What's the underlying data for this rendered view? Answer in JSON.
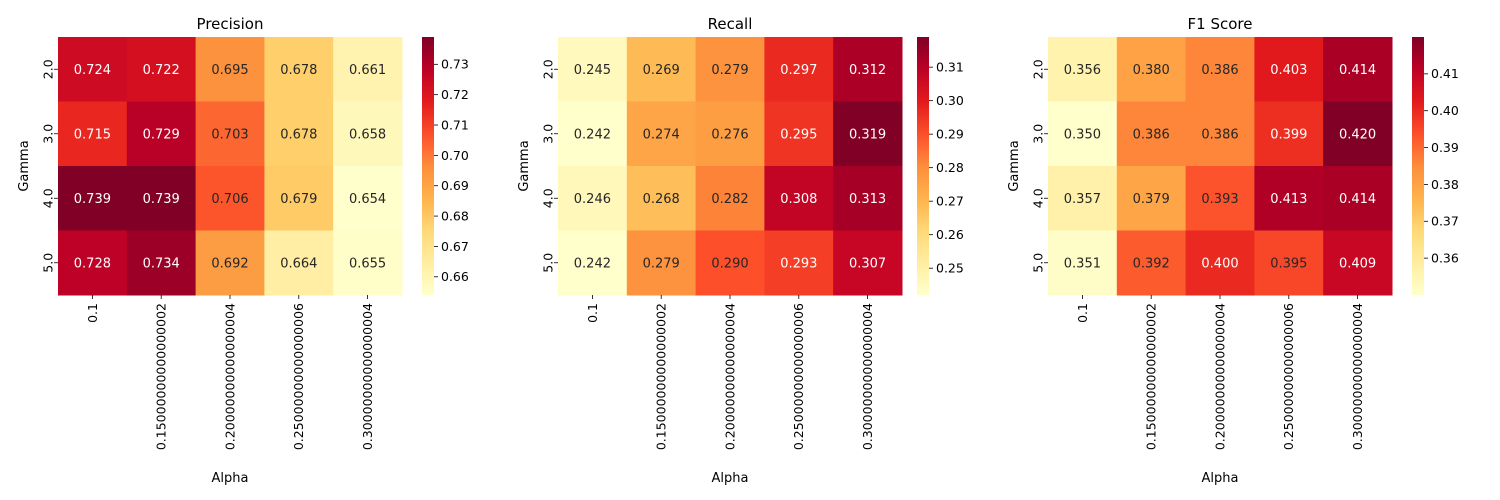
{
  "chart_data": [
    {
      "type": "heatmap",
      "title": "Precision",
      "xlabel": "Alpha",
      "ylabel": "Gamma",
      "x_tick_labels": [
        "0.1",
        "0.15000000000000002",
        "0.20000000000000004",
        "0.25000000000000006",
        "0.30000000000000004"
      ],
      "y_tick_labels": [
        "2.0",
        "3.0",
        "4.0",
        "5.0"
      ],
      "values": [
        [
          0.724,
          0.722,
          0.695,
          0.678,
          0.661
        ],
        [
          0.715,
          0.729,
          0.703,
          0.678,
          0.658
        ],
        [
          0.739,
          0.739,
          0.706,
          0.679,
          0.654
        ],
        [
          0.728,
          0.734,
          0.692,
          0.664,
          0.655
        ]
      ],
      "value_labels": [
        [
          "0.724",
          "0.722",
          "0.695",
          "0.678",
          "0.661"
        ],
        [
          "0.715",
          "0.729",
          "0.703",
          "0.678",
          "0.658"
        ],
        [
          "0.739",
          "0.739",
          "0.706",
          "0.679",
          "0.654"
        ],
        [
          "0.728",
          "0.734",
          "0.692",
          "0.664",
          "0.655"
        ]
      ],
      "colorbar_ticks": [
        "0.66",
        "0.67",
        "0.68",
        "0.69",
        "0.70",
        "0.71",
        "0.72",
        "0.73"
      ],
      "colorbar_tick_values": [
        0.66,
        0.67,
        0.68,
        0.69,
        0.7,
        0.71,
        0.72,
        0.73
      ],
      "vmin": 0.654,
      "vmax": 0.739,
      "colormap": "YlOrRd"
    },
    {
      "type": "heatmap",
      "title": "Recall",
      "xlabel": "Alpha",
      "ylabel": "Gamma",
      "x_tick_labels": [
        "0.1",
        "0.15000000000000002",
        "0.20000000000000004",
        "0.25000000000000006",
        "0.30000000000000004"
      ],
      "y_tick_labels": [
        "2.0",
        "3.0",
        "4.0",
        "5.0"
      ],
      "values": [
        [
          0.245,
          0.269,
          0.279,
          0.297,
          0.312
        ],
        [
          0.242,
          0.274,
          0.276,
          0.295,
          0.319
        ],
        [
          0.246,
          0.268,
          0.282,
          0.308,
          0.313
        ],
        [
          0.242,
          0.279,
          0.29,
          0.293,
          0.307
        ]
      ],
      "value_labels": [
        [
          "0.245",
          "0.269",
          "0.279",
          "0.297",
          "0.312"
        ],
        [
          "0.242",
          "0.274",
          "0.276",
          "0.295",
          "0.319"
        ],
        [
          "0.246",
          "0.268",
          "0.282",
          "0.308",
          "0.313"
        ],
        [
          "0.242",
          "0.279",
          "0.290",
          "0.293",
          "0.307"
        ]
      ],
      "colorbar_ticks": [
        "0.25",
        "0.26",
        "0.27",
        "0.28",
        "0.29",
        "0.30",
        "0.31"
      ],
      "colorbar_tick_values": [
        0.25,
        0.26,
        0.27,
        0.28,
        0.29,
        0.3,
        0.31
      ],
      "vmin": 0.242,
      "vmax": 0.319,
      "colormap": "YlOrRd"
    },
    {
      "type": "heatmap",
      "title": "F1 Score",
      "xlabel": "Alpha",
      "ylabel": "Gamma",
      "x_tick_labels": [
        "0.1",
        "0.15000000000000002",
        "0.20000000000000004",
        "0.25000000000000006",
        "0.30000000000000004"
      ],
      "y_tick_labels": [
        "2.0",
        "3.0",
        "4.0",
        "5.0"
      ],
      "values": [
        [
          0.356,
          0.38,
          0.386,
          0.403,
          0.414
        ],
        [
          0.35,
          0.386,
          0.386,
          0.399,
          0.42
        ],
        [
          0.357,
          0.379,
          0.393,
          0.413,
          0.414
        ],
        [
          0.351,
          0.392,
          0.4,
          0.395,
          0.409
        ]
      ],
      "value_labels": [
        [
          "0.356",
          "0.380",
          "0.386",
          "0.403",
          "0.414"
        ],
        [
          "0.350",
          "0.386",
          "0.386",
          "0.399",
          "0.420"
        ],
        [
          "0.357",
          "0.379",
          "0.393",
          "0.413",
          "0.414"
        ],
        [
          "0.351",
          "0.392",
          "0.400",
          "0.395",
          "0.409"
        ]
      ],
      "colorbar_ticks": [
        "0.36",
        "0.37",
        "0.38",
        "0.39",
        "0.40",
        "0.41"
      ],
      "colorbar_tick_values": [
        0.36,
        0.37,
        0.38,
        0.39,
        0.4,
        0.41
      ],
      "vmin": 0.35,
      "vmax": 0.42,
      "colormap": "YlOrRd"
    }
  ]
}
